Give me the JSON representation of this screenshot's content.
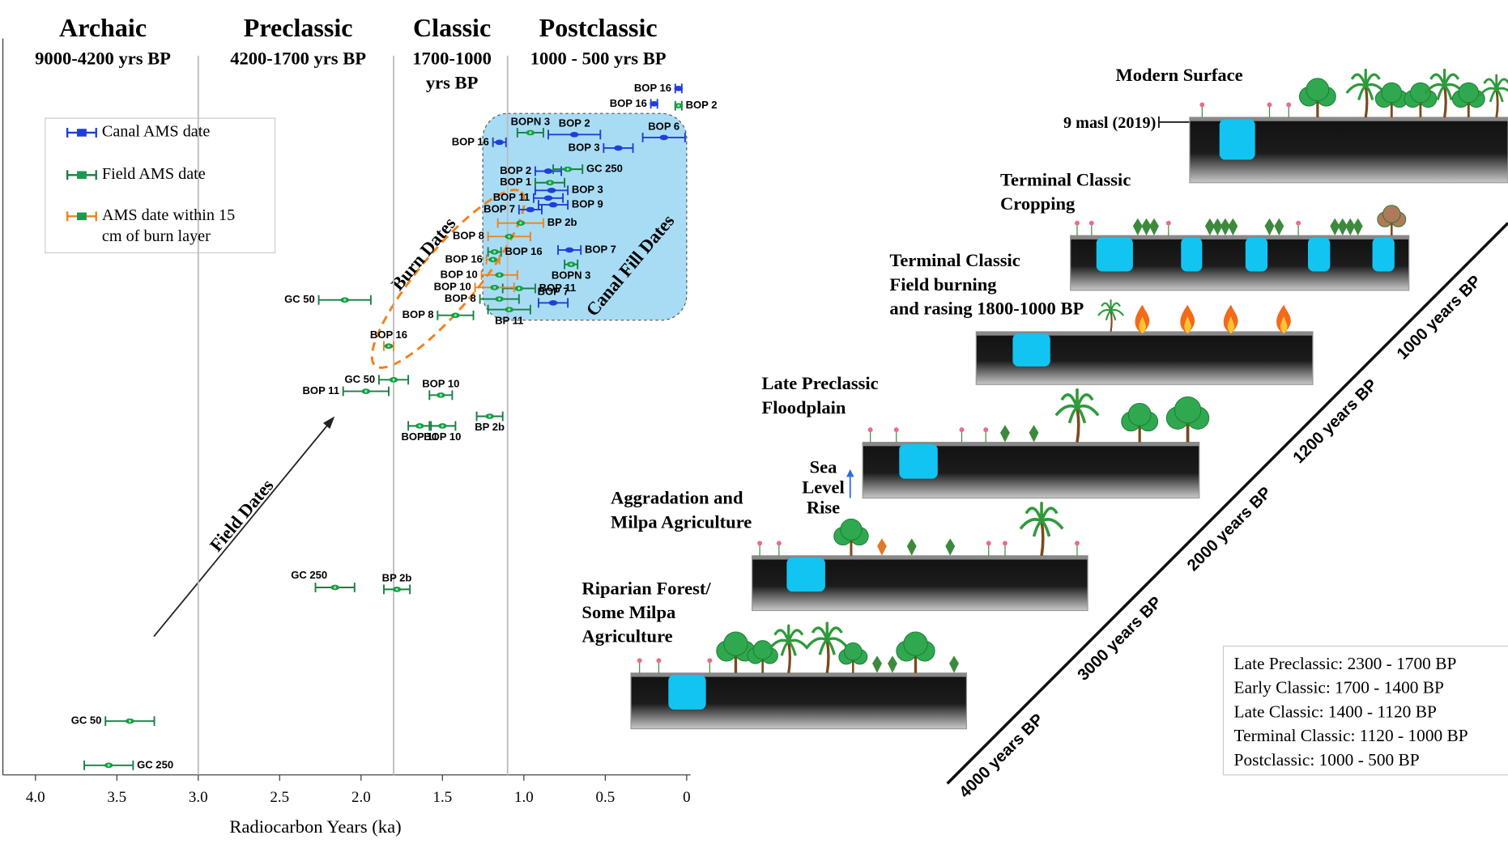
{
  "chart_data": {
    "type": "errorbar",
    "x_label": "Radiocarbon Years (ka)",
    "xlim": [
      4.2,
      0
    ],
    "xticks": [
      {
        "value": 4,
        "label": "4.0"
      },
      3.5,
      {
        "value": 3,
        "label": "3.0"
      },
      2.5,
      {
        "value": 2,
        "label": "2.0"
      },
      1.5,
      {
        "value": 1,
        "label": "1.0"
      },
      0.5,
      0
    ],
    "periods": [
      {
        "name": "Archaic",
        "range_lines": [
          "9000-4200 yrs BP"
        ]
      },
      {
        "name": "Preclassic",
        "range_lines": [
          "4200-1700 yrs BP"
        ]
      },
      {
        "name": "Classic",
        "range_lines": [
          "1700-1000",
          "yrs BP"
        ]
      },
      {
        "name": "Postclassic",
        "range_lines": [
          "1000 - 500 yrs BP"
        ]
      }
    ],
    "period_boundaries": [
      3.0,
      1.8,
      1.1
    ],
    "annotations": [
      "Burn Dates",
      "Canal Fill Dates",
      "Field Dates"
    ],
    "series": [
      {
        "name": "Canal AMS date",
        "color": "#1f3fd6",
        "marker_color": "#1f3fd6",
        "points": [
          {
            "label": "BOP 16",
            "x": 0.05,
            "xerr": 0.02
          },
          {
            "label": "BOP 16",
            "x": 0.2,
            "xerr": 0.02
          },
          {
            "label": "BOP 16",
            "x": 1.15,
            "xerr": 0.04
          },
          {
            "label": "BOP 2",
            "x": 0.69,
            "xerr": 0.16
          },
          {
            "label": "BOP 6",
            "x": 0.14,
            "xerr": 0.13
          },
          {
            "label": "BOP 3",
            "x": 0.42,
            "xerr": 0.09
          },
          {
            "label": "BOP 2",
            "x": 0.85,
            "xerr": 0.08
          },
          {
            "label": "BOP 3",
            "x": 0.83,
            "xerr": 0.1
          },
          {
            "label": "BOP 11",
            "x": 0.85,
            "xerr": 0.09
          },
          {
            "label": "BOP 9",
            "x": 0.82,
            "xerr": 0.09
          },
          {
            "label": "BOP 7",
            "x": 0.96,
            "xerr": 0.07
          },
          {
            "label": "BOP 7",
            "x": 0.72,
            "xerr": 0.07
          },
          {
            "label": "BOP 7",
            "x": 0.82,
            "xerr": 0.09
          }
        ]
      },
      {
        "name": "Field AMS date",
        "color": "#1a7d44",
        "marker_color": "#1a9a4e",
        "points": [
          {
            "label": "BOP 2",
            "x": 0.05,
            "xerr": 0.02
          },
          {
            "label": "BOPN 3",
            "x": 0.96,
            "xerr": 0.08
          },
          {
            "label": "GC 250",
            "x": 0.73,
            "xerr": 0.09
          },
          {
            "label": "BOP 1",
            "x": 0.84,
            "xerr": 0.09
          },
          {
            "label": "BOP 16",
            "x": 1.18,
            "xerr": 0.04
          },
          {
            "label": "BOPN 3",
            "x": 0.71,
            "xerr": 0.04
          },
          {
            "label": "BOP 11",
            "x": 1.03,
            "xerr": 0.1
          },
          {
            "label": "BOP 8",
            "x": 1.15,
            "xerr": 0.12
          },
          {
            "label": "BP 11",
            "x": 1.09,
            "xerr": 0.13
          },
          {
            "label": "GC 50",
            "x": 2.1,
            "xerr": 0.16
          },
          {
            "label": "BOP 8",
            "x": 1.42,
            "xerr": 0.11
          },
          {
            "label": "GC 50",
            "x": 1.8,
            "xerr": 0.09
          },
          {
            "label": "BOP 11",
            "x": 1.97,
            "xerr": 0.14
          },
          {
            "label": "BOP 10",
            "x": 1.51,
            "xerr": 0.07
          },
          {
            "label": "BP 2b",
            "x": 1.21,
            "xerr": 0.08
          },
          {
            "label": "BOP 11",
            "x": 1.64,
            "xerr": 0.07
          },
          {
            "label": "BOP 10",
            "x": 1.5,
            "xerr": 0.08
          },
          {
            "label": "GC 250",
            "x": 2.16,
            "xerr": 0.12
          },
          {
            "label": "BP 2b",
            "x": 1.78,
            "xerr": 0.08
          },
          {
            "label": "GC 50",
            "x": 3.42,
            "xerr": 0.15
          },
          {
            "label": "GC 250",
            "x": 3.55,
            "xerr": 0.15
          }
        ]
      },
      {
        "name": "AMS date within 15 cm of burn layer",
        "color": "#f0821e",
        "marker_color": "#1a9a4e",
        "points": [
          {
            "label": "BP 2b",
            "x": 1.02,
            "xerr": 0.14
          },
          {
            "label": "BOP 8",
            "x": 1.09,
            "xerr": 0.13
          },
          {
            "label": "BOP 16",
            "x": 1.19,
            "xerr": 0.04
          },
          {
            "label": "BOP 10",
            "x": 1.15,
            "xerr": 0.11
          },
          {
            "label": "BOP 10",
            "x": 1.18,
            "xerr": 0.12
          },
          {
            "label": "BOP 16",
            "x": 1.83,
            "xerr": 0.03
          }
        ]
      }
    ]
  },
  "diagram": {
    "stages": [
      {
        "lines": [
          "Modern Surface"
        ]
      },
      {
        "lines": [
          "Terminal Classic",
          "Cropping"
        ]
      },
      {
        "lines": [
          "Terminal Classic",
          "Field burning",
          "and rasing 1800-1000 BP"
        ]
      },
      {
        "lines": [
          "Late Preclassic",
          "Floodplain"
        ]
      },
      {
        "lines": [
          "Aggradation and",
          "Milpa Agriculture"
        ]
      },
      {
        "lines": [
          "Riparian Forest/",
          "Some Milpa",
          "Agriculture"
        ]
      }
    ],
    "elevation": "9 masl (2019)",
    "sea_level": [
      "Sea",
      "Level",
      "Rise"
    ],
    "timeline": [
      "4000 years BP",
      "3000 years BP",
      "2000 years BP",
      "1200 years BP",
      "1000 years BP"
    ],
    "period_table": [
      "Late Preclassic: 2300 - 1700 BP",
      "Early Classic: 1700 - 1400 BP",
      "Late Classic: 1400 - 1120 BP",
      "Terminal Classic: 1120 - 1000 BP",
      "Postclassic: 1000 - 500 BP"
    ]
  }
}
